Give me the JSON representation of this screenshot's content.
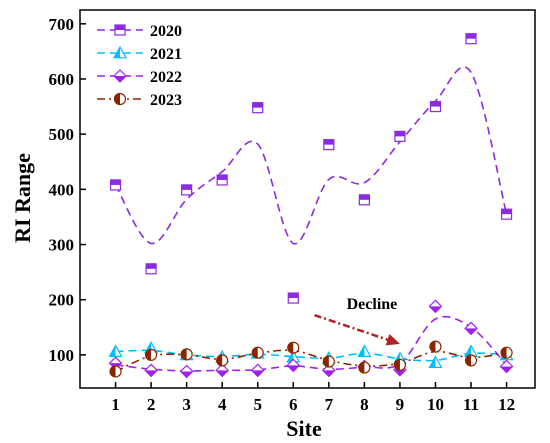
{
  "chart_data": {
    "type": "scatter",
    "title": "",
    "xlabel": "Site",
    "ylabel": "RI Range",
    "categories": [
      "1",
      "2",
      "3",
      "4",
      "5",
      "6",
      "7",
      "8",
      "9",
      "10",
      "11",
      "12"
    ],
    "xlim": [
      0,
      12.8
    ],
    "ylim": [
      40,
      725
    ],
    "yticks": [
      100,
      200,
      300,
      400,
      500,
      600,
      700
    ],
    "legend_position": "top-left",
    "grid": false,
    "series": [
      {
        "name": "2020",
        "marker": "square-half",
        "line_style": "dashed",
        "color": "#8a2be2",
        "values": [
          408,
          256,
          399,
          417,
          548,
          203,
          481,
          381,
          496,
          550,
          673,
          355
        ],
        "smoothed": [
          408,
          302,
          382,
          432,
          482,
          302,
          418,
          412,
          486,
          560,
          612,
          355
        ]
      },
      {
        "name": "2021",
        "marker": "triangle-half",
        "line_style": "dashed",
        "color": "#00bfff",
        "values": [
          106,
          112,
          100,
          96,
          103,
          96,
          94,
          106,
          93,
          86,
          106,
          100
        ],
        "smoothed": [
          106,
          108,
          100,
          97,
          101,
          97,
          94,
          103,
          93,
          90,
          103,
          100
        ]
      },
      {
        "name": "2022",
        "marker": "diamond-half",
        "line_style": "dashed",
        "color": "#a020f0",
        "values": [
          85,
          72,
          70,
          72,
          72,
          81,
          72,
          79,
          73,
          188,
          148,
          79
        ],
        "smoothed": [
          82,
          74,
          71,
          72,
          73,
          80,
          74,
          78,
          84,
          165,
          150,
          82
        ]
      },
      {
        "name": "2023",
        "marker": "circle-half",
        "line_style": "dash-dot",
        "color": "#8b2500",
        "values": [
          70,
          100,
          101,
          90,
          104,
          113,
          88,
          77,
          82,
          115,
          90,
          104
        ],
        "smoothed": [
          70,
          98,
          100,
          92,
          103,
          108,
          90,
          80,
          85,
          106,
          95,
          104
        ]
      }
    ],
    "annotations": [
      {
        "text": "Decline",
        "arrow_from": [
          6.6,
          172
        ],
        "arrow_to": [
          9.0,
          120
        ],
        "color": "#b22222"
      }
    ]
  }
}
